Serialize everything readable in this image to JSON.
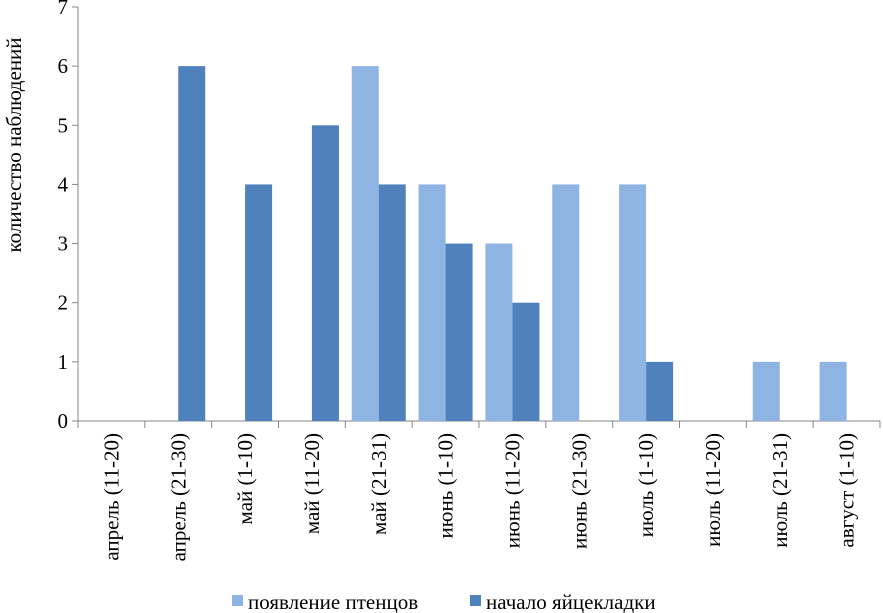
{
  "chart_data": {
    "type": "bar",
    "categories": [
      "апрель (11-20)",
      "апрель (21-30)",
      "май (1-10)",
      "май (11-20)",
      "май (21-31)",
      "июнь (1-10)",
      "июнь (11-20)",
      "июнь (21-30)",
      "июль (1-10)",
      "июль (11-20)",
      "июль (21-31)",
      "август (1-10)"
    ],
    "series": [
      {
        "name": "появление птенцов",
        "color": "#8DB4E2",
        "values": [
          0,
          0,
          0,
          0,
          6,
          4,
          3,
          4,
          4,
          0,
          1,
          1
        ]
      },
      {
        "name": "начало яйцекладки",
        "color": "#4F81BD",
        "values": [
          0,
          6,
          4,
          5,
          4,
          3,
          2,
          0,
          1,
          0,
          0,
          0
        ]
      }
    ],
    "title": "",
    "xlabel": "",
    "ylabel": "количество наблюдений",
    "ylim": [
      0,
      7
    ],
    "yticks": [
      0,
      1,
      2,
      3,
      4,
      5,
      6,
      7
    ],
    "grid": false,
    "legend": "bottom"
  }
}
